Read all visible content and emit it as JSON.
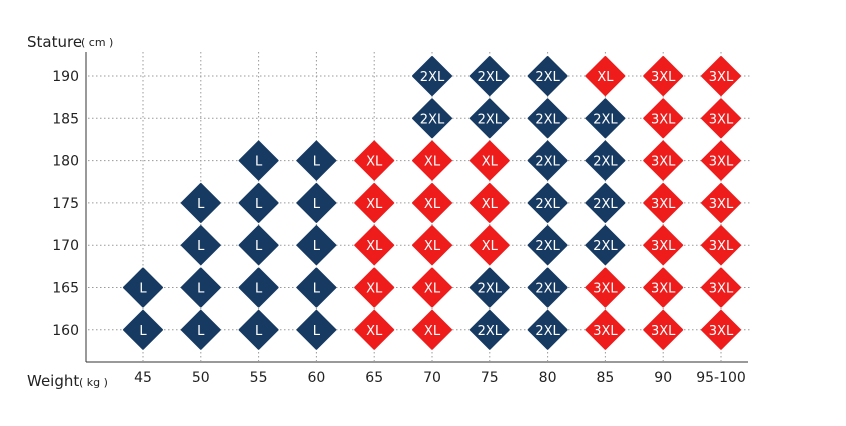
{
  "chart_data": {
    "type": "heatmap",
    "ylabel": "Stature",
    "yunit": "( cm )",
    "xlabel": "Weight",
    "xunit": "( kg )",
    "x_categories": [
      "45",
      "50",
      "55",
      "60",
      "65",
      "70",
      "75",
      "80",
      "85",
      "90",
      "95-100"
    ],
    "y_categories": [
      "190",
      "185",
      "180",
      "175",
      "170",
      "165",
      "160"
    ],
    "grid": true,
    "colors": {
      "L": "#173a63",
      "2XL": "#173a63",
      "XL": "#ef1c1c",
      "3XL": "#ef1c1c"
    },
    "cells": [
      [
        "",
        "",
        "",
        "",
        "",
        "2XL",
        "2XL",
        "2XL",
        "XL",
        "3XL",
        "3XL"
      ],
      [
        "",
        "",
        "",
        "",
        "",
        "2XL",
        "2XL",
        "2XL",
        "2XL",
        "3XL",
        "3XL"
      ],
      [
        "",
        "",
        "L",
        "L",
        "XL",
        "XL",
        "XL",
        "2XL",
        "2XL",
        "3XL",
        "3XL"
      ],
      [
        "",
        "L",
        "L",
        "L",
        "XL",
        "XL",
        "XL",
        "2XL",
        "2XL",
        "3XL",
        "3XL"
      ],
      [
        "",
        "L",
        "L",
        "L",
        "XL",
        "XL",
        "XL",
        "2XL",
        "2XL",
        "3XL",
        "3XL"
      ],
      [
        "L",
        "L",
        "L",
        "L",
        "XL",
        "XL",
        "2XL",
        "2XL",
        "3XL",
        "3XL",
        "3XL"
      ],
      [
        "L",
        "L",
        "L",
        "L",
        "XL",
        "XL",
        "2XL",
        "2XL",
        "3XL",
        "3XL",
        "3XL"
      ]
    ]
  }
}
